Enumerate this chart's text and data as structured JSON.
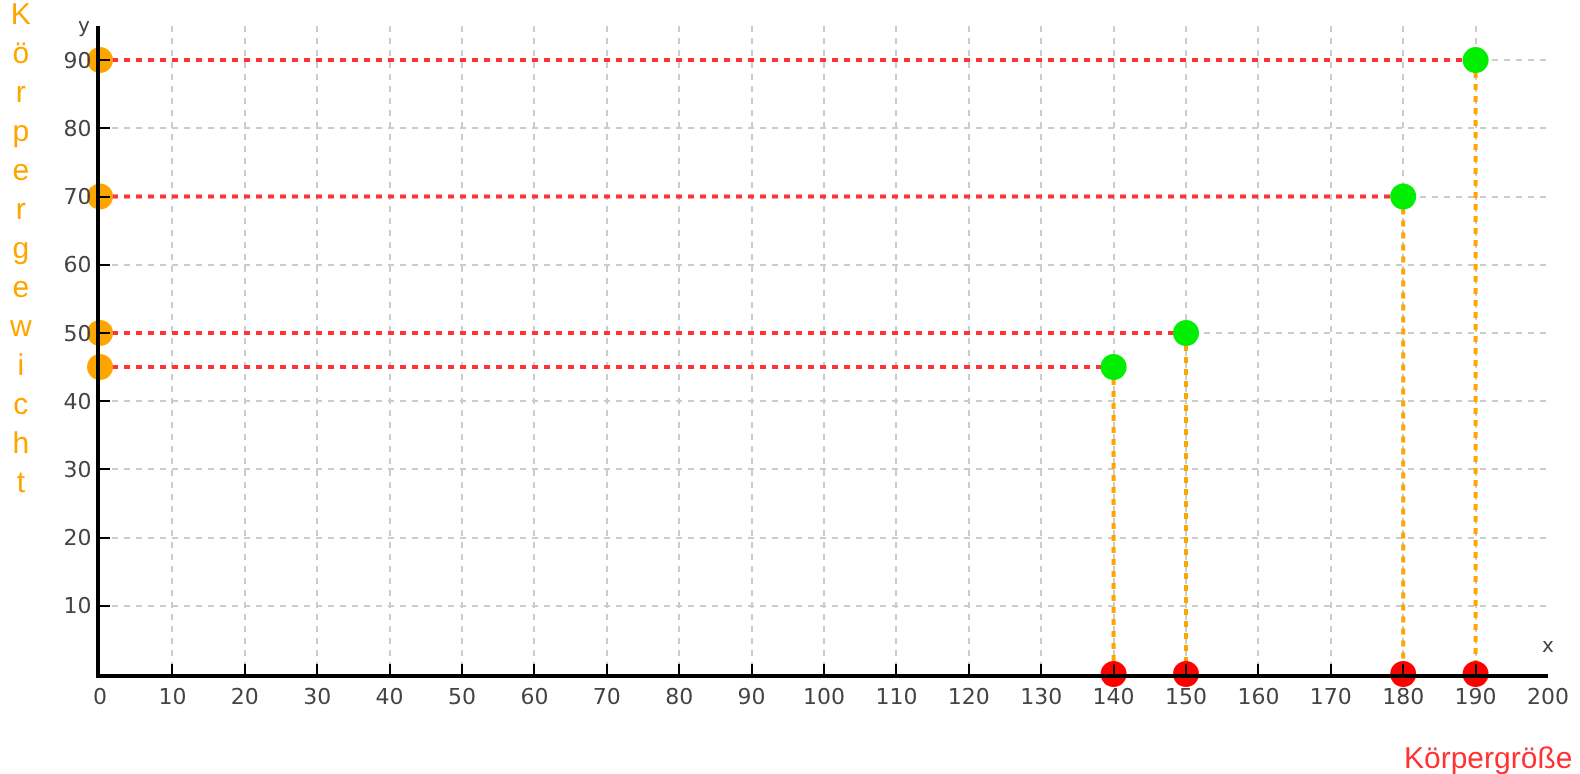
{
  "chart_data": {
    "type": "scatter",
    "xlabel": "Körpergröße",
    "ylabel": "Körpergewicht",
    "annotations": [
      "x",
      "y"
    ],
    "xlim": [
      0,
      200
    ],
    "xticks": [
      0,
      10,
      20,
      30,
      40,
      50,
      60,
      70,
      80,
      90,
      100,
      110,
      120,
      130,
      140,
      150,
      160,
      170,
      180,
      190,
      200
    ],
    "ylim": [
      0,
      95
    ],
    "yticks": [
      10,
      20,
      30,
      40,
      50,
      60,
      70,
      80,
      90
    ],
    "grid": true,
    "series": [
      {
        "type": "line",
        "color": "#ff3333",
        "line_style": "dotted",
        "marker": "none",
        "x": [
          0,
          140
        ],
        "values": [
          45,
          45
        ]
      },
      {
        "type": "line",
        "color": "#ff3333",
        "line_style": "dotted",
        "marker": "none",
        "x": [
          0,
          150
        ],
        "values": [
          50,
          50
        ]
      },
      {
        "type": "line",
        "color": "#ff3333",
        "line_style": "dotted",
        "marker": "none",
        "x": [
          0,
          180
        ],
        "values": [
          70,
          70
        ]
      },
      {
        "type": "line",
        "color": "#ff3333",
        "line_style": "dotted",
        "marker": "none",
        "x": [
          0,
          190
        ],
        "values": [
          90,
          90
        ]
      },
      {
        "type": "line",
        "color": "#ffa500",
        "line_style": "dotted",
        "marker": "none",
        "x": [
          140,
          140
        ],
        "values": [
          45,
          0
        ]
      },
      {
        "type": "line",
        "color": "#ffa500",
        "line_style": "dotted",
        "marker": "none",
        "x": [
          150,
          150
        ],
        "values": [
          50,
          0
        ]
      },
      {
        "type": "line",
        "color": "#ffa500",
        "line_style": "dotted",
        "marker": "none",
        "x": [
          180,
          180
        ],
        "values": [
          70,
          0
        ]
      },
      {
        "type": "line",
        "color": "#ffa500",
        "line_style": "dotted",
        "marker": "none",
        "x": [
          190,
          190
        ],
        "values": [
          90,
          0
        ]
      },
      {
        "color": "#00ee00",
        "marker": "circle",
        "x": [
          140,
          150,
          180,
          190
        ],
        "values": [
          45,
          50,
          70,
          90
        ]
      },
      {
        "color": "#ffa500",
        "marker": "circle",
        "x": [
          0,
          0,
          0,
          0
        ],
        "values": [
          45,
          50,
          70,
          90
        ]
      },
      {
        "color": "#ff0000",
        "marker": "circle",
        "x": [
          140,
          150,
          180,
          190
        ],
        "values": [
          0,
          0,
          0,
          0
        ]
      }
    ]
  }
}
